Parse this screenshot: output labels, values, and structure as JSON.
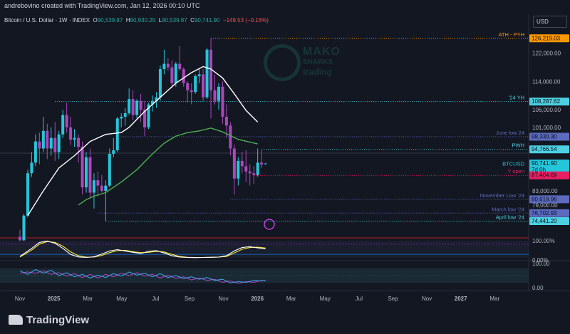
{
  "header": {
    "author_line": "andrebovino created with TradingView.com, Jan 12, 2026 00:10 UTC",
    "symbol": "Bitcoin / U.S. Dollar · 1W · INDEX",
    "o_label": "O",
    "o_value": "90,539.87",
    "h_label": "H",
    "h_value": "90,930.25",
    "l_label": "L",
    "l_value": "90,539.87",
    "c_label": "C",
    "c_value": "90,741.90",
    "change": "−149.53 (−0.16%)"
  },
  "currency": "USD",
  "watermark": {
    "line1": "MAKO",
    "line2": "SHARKS",
    "line3": "trading"
  },
  "brand": "TradingView",
  "chart_data": {
    "type": "candlestick",
    "price_axis": {
      "ylim": [
        70500,
        129000
      ],
      "ticks": [
        "122,000.00",
        "114,000.00",
        "106,000.00",
        "101,000.00",
        "89,226.00",
        "83,000.00",
        "79,000.00"
      ],
      "tick_values": [
        122000,
        114000,
        106000,
        101000,
        89226,
        83000,
        79000
      ]
    },
    "time_axis": {
      "labels": [
        "Nov",
        "2025",
        "Mar",
        "May",
        "Jul",
        "Sep",
        "Nov",
        "2026",
        "Mar",
        "May",
        "Jul",
        "Sep",
        "Nov",
        "2027",
        "Mar"
      ],
      "bold": [
        false,
        true,
        false,
        false,
        false,
        false,
        false,
        true,
        false,
        false,
        false,
        false,
        false,
        true,
        false
      ],
      "x_index": [
        0,
        8.7,
        17.4,
        26.1,
        34.8,
        43.5,
        52.2,
        60.9,
        69.6,
        78.3,
        87,
        95.7,
        104.4,
        113.1,
        121.8
      ]
    },
    "candles": [
      [
        70000,
        72000,
        66000,
        69000
      ],
      [
        69000,
        76500,
        68500,
        76000
      ],
      [
        76000,
        89000,
        75500,
        88000
      ],
      [
        88000,
        94000,
        87000,
        91000
      ],
      [
        91000,
        99000,
        90000,
        97000
      ],
      [
        97000,
        99500,
        90500,
        95000
      ],
      [
        95000,
        104000,
        94000,
        100000
      ],
      [
        100000,
        102000,
        92000,
        95000
      ],
      [
        95000,
        101000,
        93000,
        98000
      ],
      [
        98000,
        102500,
        91500,
        94000
      ],
      [
        94000,
        100000,
        92000,
        99000
      ],
      [
        99000,
        106000,
        98000,
        104500
      ],
      [
        104500,
        108000,
        99500,
        101000
      ],
      [
        101000,
        104000,
        96000,
        97500
      ],
      [
        97500,
        100500,
        95500,
        98000
      ],
      [
        98000,
        99000,
        91000,
        95500
      ],
      [
        95500,
        97000,
        82000,
        84000
      ],
      [
        84000,
        94000,
        82500,
        92500
      ],
      [
        92500,
        95000,
        81000,
        82500
      ],
      [
        82500,
        88000,
        78000,
        86000
      ],
      [
        86000,
        88500,
        81500,
        84500
      ],
      [
        84500,
        87500,
        82500,
        83000
      ],
      [
        83000,
        86000,
        74500,
        84500
      ],
      [
        84500,
        95000,
        84000,
        93500
      ],
      [
        93500,
        98000,
        92500,
        94500
      ],
      [
        94500,
        104000,
        94000,
        103500
      ],
      [
        103500,
        105000,
        101000,
        104000
      ],
      [
        104000,
        106500,
        101500,
        105000
      ],
      [
        105000,
        112000,
        104500,
        109000
      ],
      [
        109000,
        111500,
        103000,
        104500
      ],
      [
        104500,
        109000,
        103500,
        108500
      ],
      [
        108500,
        110500,
        102500,
        106000
      ],
      [
        106000,
        108500,
        98500,
        101000
      ],
      [
        101000,
        108000,
        100500,
        107500
      ],
      [
        107500,
        110000,
        105500,
        108500
      ],
      [
        108500,
        111000,
        106500,
        109500
      ],
      [
        109500,
        118500,
        108500,
        117500
      ],
      [
        117500,
        123000,
        116000,
        119000
      ],
      [
        119000,
        120500,
        117000,
        118000
      ],
      [
        118000,
        120000,
        112000,
        113500
      ],
      [
        113500,
        119500,
        112500,
        119000
      ],
      [
        119000,
        124000,
        117000,
        117500
      ],
      [
        117500,
        118000,
        112500,
        113500
      ],
      [
        113500,
        114000,
        108000,
        111500
      ],
      [
        111500,
        113500,
        107500,
        111000
      ],
      [
        111000,
        116000,
        110500,
        115500
      ],
      [
        115500,
        117500,
        113500,
        116000
      ],
      [
        116000,
        117500,
        108500,
        109500
      ],
      [
        109500,
        123500,
        109000,
        123000
      ],
      [
        123000,
        126219,
        103500,
        111500
      ],
      [
        111500,
        116000,
        107500,
        108500
      ],
      [
        108500,
        113500,
        106000,
        112500
      ],
      [
        112500,
        114000,
        102000,
        104000
      ],
      [
        104000,
        107500,
        98000,
        101500
      ],
      [
        101500,
        102500,
        93000,
        95000
      ],
      [
        95000,
        96000,
        82000,
        86500
      ],
      [
        86500,
        92500,
        84500,
        91500
      ],
      [
        91500,
        94000,
        88000,
        90000
      ],
      [
        90000,
        94500,
        85500,
        88500
      ],
      [
        88500,
        90500,
        84500,
        88000
      ],
      [
        88000,
        90000,
        85000,
        87500
      ],
      [
        87500,
        95000,
        87000,
        91000
      ],
      [
        91000,
        94500,
        89500,
        90500
      ],
      [
        90539.87,
        90930.25,
        90539.87,
        90741.9
      ]
    ],
    "ma_short": [
      [
        2,
        76000
      ],
      [
        6,
        83000
      ],
      [
        10,
        89500
      ],
      [
        14,
        93000
      ],
      [
        18,
        97000
      ],
      [
        22,
        99000
      ],
      [
        26,
        99500
      ],
      [
        28,
        101000
      ],
      [
        32,
        105500
      ],
      [
        36,
        109500
      ],
      [
        40,
        113500
      ],
      [
        44,
        116500
      ],
      [
        47,
        118200
      ],
      [
        49,
        117500
      ],
      [
        52,
        115000
      ],
      [
        55,
        110500
      ],
      [
        58,
        105800
      ],
      [
        61,
        102500
      ]
    ],
    "ma_long": [
      [
        15,
        79000
      ],
      [
        17,
        80500
      ],
      [
        19,
        81500
      ],
      [
        22,
        82500
      ],
      [
        26,
        85500
      ],
      [
        30,
        89000
      ],
      [
        34,
        93500
      ],
      [
        37,
        96500
      ],
      [
        40,
        98500
      ],
      [
        43,
        99500
      ],
      [
        46,
        100000
      ],
      [
        49,
        100800
      ],
      [
        52,
        99700
      ],
      [
        56,
        97600
      ],
      [
        61,
        96300
      ]
    ],
    "levels": [
      {
        "name": "ATH - PYH",
        "label": "ATH - PYH",
        "value": "126,219.03",
        "price": 126219.03,
        "color": "#ff9800",
        "start_index": 49
      },
      {
        "name": "24 YH",
        "label": "'24 YH",
        "value": "108,287.62",
        "price": 108287.62,
        "color": "#4dd0e1",
        "start_index": 9
      },
      {
        "name": "June low 24",
        "label": "June low 24",
        "value": "98,330.30",
        "price": 98330.3,
        "color": "#5c6bc0",
        "start_index": 26
      },
      {
        "name": "PWH",
        "label": "PWH",
        "value": "94,766.54",
        "price": 94766.54,
        "color": "#4dd0e1",
        "start_index": 62
      },
      {
        "name": "BTCUSD",
        "label": "BTCUSD",
        "value": "90,741.90",
        "sub": "7d 0h",
        "price": 90741.9,
        "color": "#26c6da",
        "start_index": -1
      },
      {
        "name": "Y open",
        "label": "Y open",
        "value": "87,404.69",
        "price": 87404.69,
        "color": "#e91e63",
        "start_index": 60
      },
      {
        "name": "November Low 24",
        "label": "November Low '24",
        "value": "80,619.96",
        "price": 80619.96,
        "color": "#5c6bc0",
        "start_index": 54
      },
      {
        "name": "March low 24",
        "label": "March low '24",
        "value": "76,702.93",
        "price": 76702.93,
        "color": "#5c6bc0",
        "start_index": 20
      },
      {
        "name": "April low 24",
        "label": "April low '24",
        "value": "74,441.20",
        "price": 74441.2,
        "color": "#4dd0e1",
        "start_index": 22
      }
    ],
    "oscillator1": {
      "ticks": [
        "100.00%",
        "0.00%"
      ],
      "k": [
        [
          0,
          8
        ],
        [
          3,
          55
        ],
        [
          5,
          90
        ],
        [
          7,
          98
        ],
        [
          9,
          85
        ],
        [
          11,
          55
        ],
        [
          13,
          20
        ],
        [
          15,
          5
        ],
        [
          17,
          2
        ],
        [
          19,
          6
        ],
        [
          21,
          22
        ],
        [
          23,
          40
        ],
        [
          25,
          48
        ],
        [
          27,
          40
        ],
        [
          29,
          32
        ],
        [
          31,
          25
        ],
        [
          33,
          38
        ],
        [
          35,
          42
        ],
        [
          37,
          28
        ],
        [
          39,
          12
        ],
        [
          41,
          4
        ],
        [
          43,
          2
        ],
        [
          45,
          1
        ],
        [
          47,
          2
        ],
        [
          49,
          3
        ],
        [
          51,
          4
        ],
        [
          53,
          12
        ],
        [
          55,
          40
        ],
        [
          57,
          60
        ],
        [
          59,
          65
        ],
        [
          61,
          58
        ],
        [
          63,
          52
        ]
      ],
      "d": [
        [
          0,
          5
        ],
        [
          3,
          45
        ],
        [
          5,
          80
        ],
        [
          7,
          95
        ],
        [
          9,
          90
        ],
        [
          11,
          68
        ],
        [
          13,
          35
        ],
        [
          15,
          12
        ],
        [
          17,
          4
        ],
        [
          19,
          4
        ],
        [
          21,
          14
        ],
        [
          23,
          30
        ],
        [
          25,
          42
        ],
        [
          27,
          44
        ],
        [
          29,
          36
        ],
        [
          31,
          30
        ],
        [
          33,
          32
        ],
        [
          35,
          38
        ],
        [
          37,
          34
        ],
        [
          39,
          20
        ],
        [
          41,
          8
        ],
        [
          43,
          3
        ],
        [
          45,
          2
        ],
        [
          47,
          2
        ],
        [
          49,
          3
        ],
        [
          51,
          4
        ],
        [
          53,
          8
        ],
        [
          55,
          28
        ],
        [
          57,
          50
        ],
        [
          59,
          60
        ],
        [
          61,
          62
        ],
        [
          63,
          57
        ]
      ]
    },
    "oscillator2": {
      "ticks": [
        "100.00",
        "0.00"
      ],
      "a": [
        [
          0,
          70
        ],
        [
          2,
          55
        ],
        [
          4,
          75
        ],
        [
          6,
          60
        ],
        [
          8,
          72
        ],
        [
          10,
          50
        ],
        [
          12,
          62
        ],
        [
          14,
          45
        ],
        [
          16,
          55
        ],
        [
          18,
          40
        ],
        [
          20,
          52
        ],
        [
          22,
          42
        ],
        [
          24,
          58
        ],
        [
          26,
          48
        ],
        [
          28,
          65
        ],
        [
          30,
          52
        ],
        [
          32,
          60
        ],
        [
          34,
          45
        ],
        [
          36,
          58
        ],
        [
          38,
          42
        ],
        [
          40,
          50
        ],
        [
          42,
          38
        ],
        [
          44,
          45
        ],
        [
          46,
          35
        ],
        [
          48,
          42
        ],
        [
          50,
          30
        ],
        [
          52,
          35
        ],
        [
          54,
          20
        ],
        [
          56,
          25
        ],
        [
          58,
          22
        ],
        [
          60,
          30
        ],
        [
          62,
          28
        ],
        [
          63,
          30
        ]
      ],
      "b": [
        [
          0,
          60
        ],
        [
          2,
          65
        ],
        [
          4,
          60
        ],
        [
          6,
          70
        ],
        [
          8,
          55
        ],
        [
          10,
          62
        ],
        [
          12,
          48
        ],
        [
          14,
          58
        ],
        [
          16,
          42
        ],
        [
          18,
          55
        ],
        [
          20,
          40
        ],
        [
          22,
          55
        ],
        [
          24,
          45
        ],
        [
          26,
          60
        ],
        [
          28,
          50
        ],
        [
          30,
          62
        ],
        [
          32,
          48
        ],
        [
          34,
          55
        ],
        [
          36,
          40
        ],
        [
          38,
          52
        ],
        [
          40,
          38
        ],
        [
          42,
          45
        ],
        [
          44,
          32
        ],
        [
          46,
          40
        ],
        [
          48,
          30
        ],
        [
          50,
          35
        ],
        [
          52,
          22
        ],
        [
          54,
          28
        ],
        [
          56,
          18
        ],
        [
          58,
          25
        ],
        [
          60,
          22
        ],
        [
          62,
          30
        ],
        [
          63,
          28
        ]
      ]
    }
  }
}
